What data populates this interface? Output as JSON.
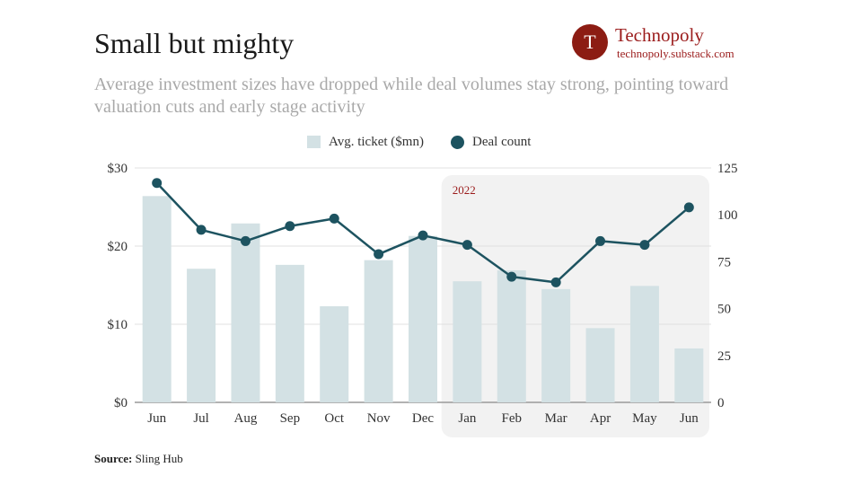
{
  "header": {
    "title": "Small but mighty",
    "subtitle": "Average investment sizes have dropped while deal volumes stay strong, pointing toward valuation cuts and early stage activity"
  },
  "brand": {
    "logo_letter": "T",
    "name": "Technopoly",
    "url": "technopoly.substack.com",
    "color": "#9b1c1c"
  },
  "legend": {
    "bar_label": "Avg. ticket ($mn)",
    "line_label": "Deal count"
  },
  "source": {
    "label": "Source:",
    "text": "Sling Hub"
  },
  "chart_data": {
    "type": "bar+line",
    "categories": [
      "Jun",
      "Jul",
      "Aug",
      "Sep",
      "Oct",
      "Nov",
      "Dec",
      "Jan",
      "Feb",
      "Mar",
      "Apr",
      "May",
      "Jun"
    ],
    "series": [
      {
        "name": "Avg. ticket ($mn)",
        "type": "bar",
        "axis": "left",
        "color": "#d3e1e4",
        "values": [
          26.4,
          17.1,
          22.9,
          17.6,
          12.3,
          18.2,
          21.3,
          15.5,
          16.9,
          14.5,
          9.5,
          14.9,
          6.9
        ]
      },
      {
        "name": "Deal count",
        "type": "line",
        "axis": "right",
        "color": "#1d5360",
        "values": [
          117,
          92,
          86,
          94,
          98,
          79,
          89,
          84,
          67,
          64,
          86,
          84,
          104
        ]
      }
    ],
    "left_axis": {
      "ticks": [
        "$0",
        "$10",
        "$20",
        "$30"
      ],
      "tick_values": [
        0,
        10,
        20,
        30
      ],
      "ylim": [
        0,
        30
      ]
    },
    "right_axis": {
      "ticks": [
        "0",
        "25",
        "50",
        "75",
        "100",
        "125"
      ],
      "tick_values": [
        0,
        25,
        50,
        75,
        100,
        125
      ],
      "ylim": [
        0,
        125
      ]
    },
    "highlight": {
      "label": "2022",
      "from_category_index": 7,
      "to_category_index": 12,
      "label_color": "#9b1c1c"
    },
    "grid": true
  }
}
